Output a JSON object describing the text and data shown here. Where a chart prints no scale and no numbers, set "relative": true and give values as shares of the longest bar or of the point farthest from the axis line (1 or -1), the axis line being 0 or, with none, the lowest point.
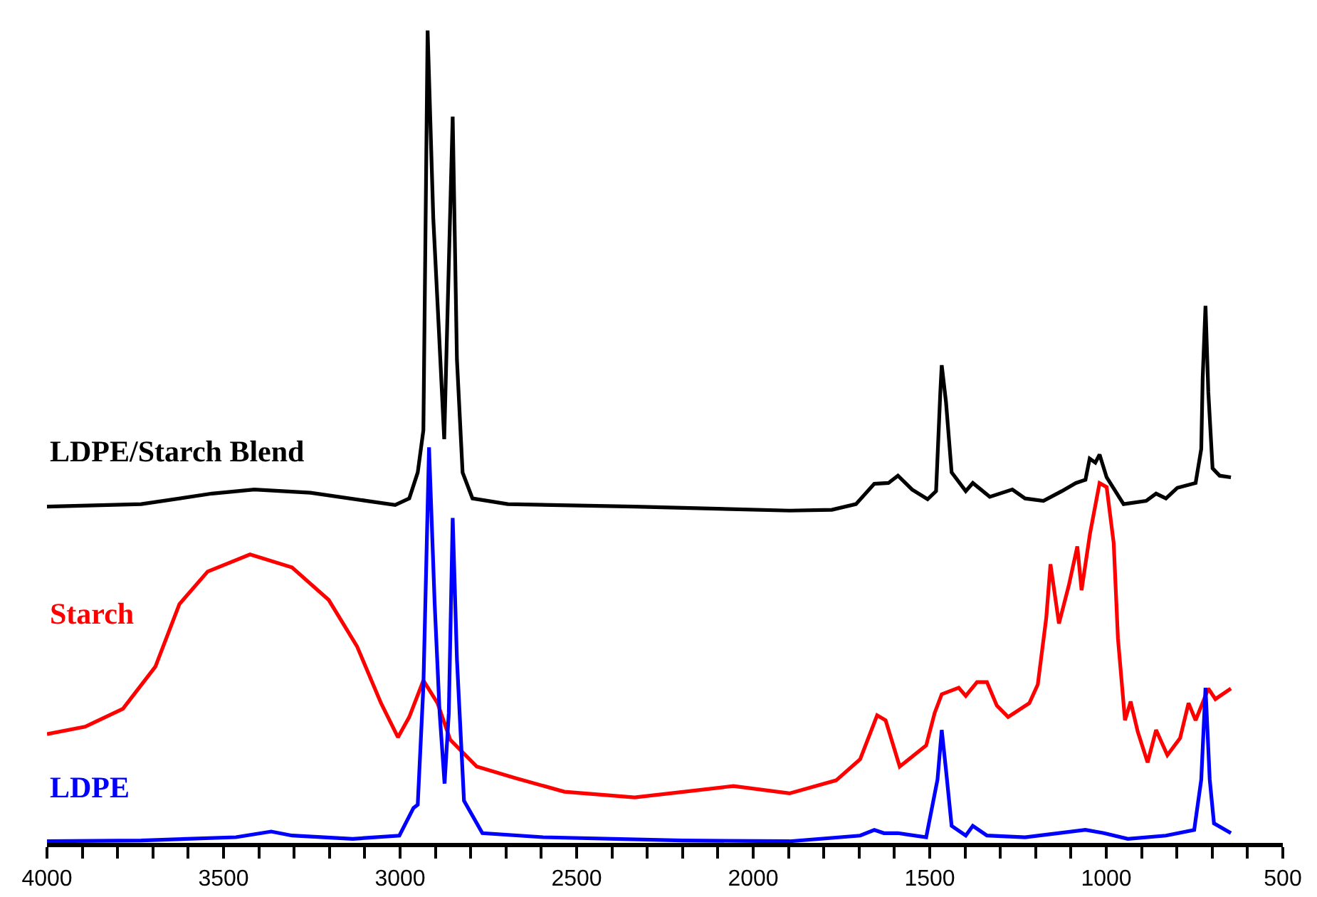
{
  "chart_data": {
    "type": "line",
    "relative": true,
    "legend": false,
    "grid": false,
    "marker": "none",
    "line_style": "solid",
    "xlim": [
      4000,
      500
    ],
    "xticks": [
      4000,
      {
        "value": 3900,
        "label": null
      },
      {
        "value": 3800,
        "label": null
      },
      {
        "value": 3700,
        "label": null
      },
      {
        "value": 3600,
        "label": null
      },
      3500,
      {
        "value": 3400,
        "label": null
      },
      {
        "value": 3300,
        "label": null
      },
      {
        "value": 3200,
        "label": null
      },
      {
        "value": 3100,
        "label": null
      },
      3000,
      {
        "value": 2900,
        "label": null
      },
      {
        "value": 2800,
        "label": null
      },
      {
        "value": 2700,
        "label": null
      },
      {
        "value": 2600,
        "label": null
      },
      2500,
      {
        "value": 2400,
        "label": null
      },
      {
        "value": 2300,
        "label": null
      },
      {
        "value": 2200,
        "label": null
      },
      {
        "value": 2100,
        "label": null
      },
      2000,
      {
        "value": 1900,
        "label": null
      },
      {
        "value": 1800,
        "label": null
      },
      {
        "value": 1700,
        "label": null
      },
      {
        "value": 1600,
        "label": null
      },
      1500,
      {
        "value": 1400,
        "label": null
      },
      {
        "value": 1300,
        "label": null
      },
      {
        "value": 1200,
        "label": null
      },
      {
        "value": 1100,
        "label": null
      },
      1000,
      {
        "value": 900,
        "label": null
      },
      {
        "value": 800,
        "label": null
      },
      {
        "value": 700,
        "label": null
      },
      {
        "value": 600,
        "label": null
      },
      500
    ],
    "series": [
      {
        "name": "LDPE/Starch Blend",
        "color": "#000000",
        "x": [
          4000,
          3733,
          3533,
          3413,
          3254,
          3094,
          3014,
          2974,
          2950,
          2934,
          2922,
          2906,
          2890,
          2875,
          2851,
          2839,
          2823,
          2795,
          2695,
          2336,
          1897,
          1777,
          1709,
          1657,
          1617,
          1590,
          1550,
          1506,
          1482,
          1470,
          1466,
          1454,
          1438,
          1398,
          1378,
          1330,
          1266,
          1230,
          1178,
          1126,
          1086,
          1059,
          1047,
          1031,
          1019,
          999,
          951,
          887,
          859,
          831,
          799,
          747,
          731,
          727,
          719,
          711,
          699,
          679,
          647
        ],
        "values": [
          0.414,
          0.417,
          0.43,
          0.435,
          0.431,
          0.421,
          0.416,
          0.424,
          0.456,
          0.508,
          1.0,
          0.769,
          0.63,
          0.497,
          0.894,
          0.595,
          0.456,
          0.424,
          0.417,
          0.414,
          0.409,
          0.41,
          0.417,
          0.442,
          0.443,
          0.452,
          0.435,
          0.423,
          0.433,
          0.555,
          0.588,
          0.543,
          0.456,
          0.433,
          0.443,
          0.426,
          0.435,
          0.424,
          0.421,
          0.433,
          0.443,
          0.447,
          0.473,
          0.468,
          0.478,
          0.45,
          0.417,
          0.421,
          0.43,
          0.424,
          0.437,
          0.443,
          0.485,
          0.572,
          0.661,
          0.555,
          0.461,
          0.452,
          0.45
        ]
      },
      {
        "name": "Starch",
        "color": "#ff0000",
        "x": [
          4000,
          3892,
          3785,
          3693,
          3625,
          3545,
          3425,
          3306,
          3202,
          3122,
          3054,
          3006,
          2974,
          2934,
          2894,
          2858,
          2783,
          2675,
          2535,
          2336,
          2056,
          1897,
          1765,
          1697,
          1649,
          1625,
          1585,
          1510,
          1486,
          1466,
          1418,
          1398,
          1366,
          1338,
          1310,
          1278,
          1218,
          1194,
          1170,
          1158,
          1134,
          1106,
          1082,
          1070,
          1046,
          1019,
          999,
          979,
          967,
          947,
          931,
          911,
          883,
          859,
          827,
          791,
          767,
          747,
          711,
          691,
          647
        ],
        "values": [
          0.134,
          0.143,
          0.165,
          0.217,
          0.294,
          0.334,
          0.355,
          0.339,
          0.299,
          0.242,
          0.172,
          0.13,
          0.155,
          0.2,
          0.172,
          0.127,
          0.094,
          0.08,
          0.063,
          0.056,
          0.07,
          0.061,
          0.077,
          0.103,
          0.157,
          0.151,
          0.094,
          0.12,
          0.16,
          0.183,
          0.191,
          0.181,
          0.198,
          0.198,
          0.169,
          0.155,
          0.172,
          0.195,
          0.277,
          0.343,
          0.27,
          0.317,
          0.365,
          0.311,
          0.381,
          0.443,
          0.438,
          0.369,
          0.252,
          0.151,
          0.174,
          0.137,
          0.099,
          0.139,
          0.108,
          0.129,
          0.172,
          0.151,
          0.19,
          0.177,
          0.19
        ]
      },
      {
        "name": "LDPE",
        "color": "#0000ff",
        "x": [
          4000,
          3733,
          3465,
          3365,
          3306,
          3134,
          3002,
          2962,
          2950,
          2934,
          2918,
          2902,
          2888,
          2874,
          2862,
          2851,
          2839,
          2819,
          2767,
          2595,
          2200,
          1897,
          1697,
          1657,
          1630,
          1590,
          1510,
          1478,
          1466,
          1454,
          1438,
          1398,
          1378,
          1338,
          1230,
          1059,
          1007,
          939,
          831,
          751,
          731,
          719,
          707,
          695,
          647
        ],
        "values": [
          0.002,
          0.003,
          0.007,
          0.014,
          0.009,
          0.005,
          0.009,
          0.043,
          0.047,
          0.193,
          0.487,
          0.294,
          0.16,
          0.073,
          0.16,
          0.4,
          0.226,
          0.052,
          0.012,
          0.007,
          0.003,
          0.002,
          0.009,
          0.016,
          0.012,
          0.012,
          0.007,
          0.078,
          0.139,
          0.09,
          0.021,
          0.009,
          0.021,
          0.009,
          0.007,
          0.016,
          0.012,
          0.005,
          0.009,
          0.016,
          0.078,
          0.191,
          0.078,
          0.024,
          0.012
        ]
      }
    ]
  }
}
